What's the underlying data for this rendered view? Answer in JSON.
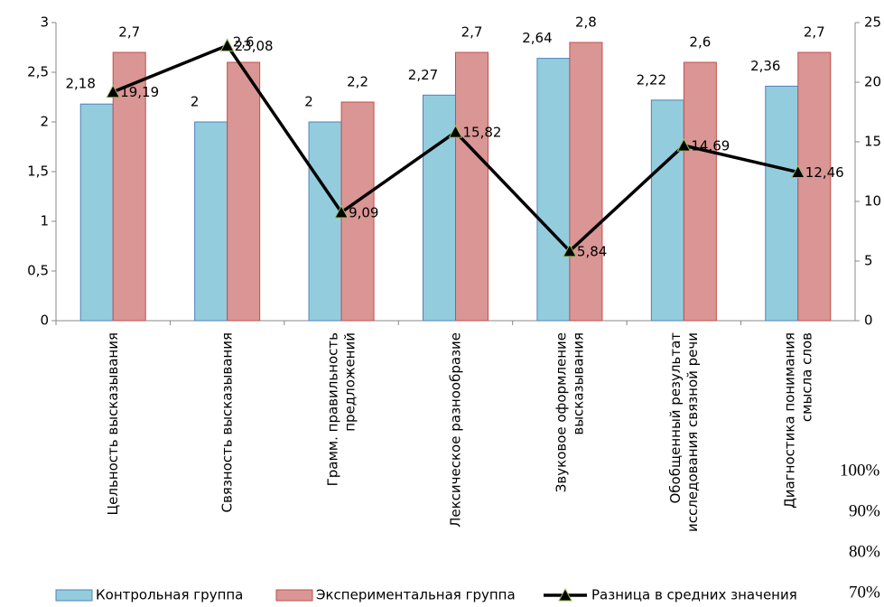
{
  "chart_data": {
    "type": "bar_line",
    "categories": [
      "Цельность высказывания",
      "Связность высказывания",
      "Грамм. правильность\nпредложений",
      "Лексическое разнообразие",
      "Звуковое оформление\nвысказывания",
      "Обобщенный результат\nисследования связной речи",
      "Диагностика понимания\nсмысла слов"
    ],
    "series": [
      {
        "name": "Контрольная группа",
        "color": "#93cddd",
        "values": [
          2.18,
          2,
          2,
          2.27,
          2.64,
          2.22,
          2.36
        ],
        "value_labels": [
          "2,18",
          "2",
          "2",
          "2,27",
          "2,64",
          "2,22",
          "2,36"
        ]
      },
      {
        "name": "Экспериментальная группа",
        "color": "#d99694",
        "values": [
          2.7,
          2.6,
          2.2,
          2.7,
          2.8,
          2.6,
          2.7
        ],
        "value_labels": [
          "2,7",
          "2,6",
          "2,2",
          "2,7",
          "2,8",
          "2,6",
          "2,7"
        ]
      },
      {
        "name": "Разница в средних значения",
        "color": "#000000",
        "axis": "y2",
        "values": [
          19.19,
          23.08,
          9.09,
          15.82,
          5.84,
          14.69,
          12.46
        ],
        "value_labels": [
          "19,19",
          "23,08",
          "9,09",
          "15,82",
          "5,84",
          "14,69",
          "12,46"
        ]
      }
    ],
    "ylim": [
      0,
      3
    ],
    "yticks": [
      0,
      {
        "value": 0.5,
        "label": "0,5"
      },
      1,
      {
        "value": 1.5,
        "label": "1,5"
      },
      2,
      {
        "value": 2.5,
        "label": "2,5"
      },
      3
    ],
    "y2lim": [
      0,
      25
    ],
    "y2ticks": [
      0,
      5,
      10,
      15,
      20,
      25
    ],
    "legend": "bottom"
  },
  "background_labels": [
    "100%",
    "90%",
    "80%",
    "70%"
  ]
}
